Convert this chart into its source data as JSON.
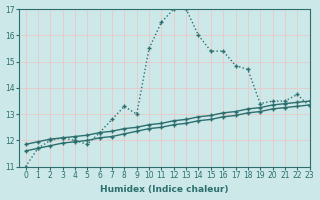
{
  "xlabel": "Humidex (Indice chaleur)",
  "bg_color": "#cce8e8",
  "line_color": "#2d6e6e",
  "grid_color": "#e8c8c8",
  "xlim": [
    -0.5,
    23
  ],
  "ylim": [
    11,
    17
  ],
  "x_ticks": [
    0,
    1,
    2,
    3,
    4,
    5,
    6,
    7,
    8,
    9,
    10,
    11,
    12,
    13,
    14,
    15,
    16,
    17,
    18,
    19,
    20,
    21,
    22,
    23
  ],
  "y_ticks": [
    11,
    12,
    13,
    14,
    15,
    16,
    17
  ],
  "main_x": [
    0,
    1,
    2,
    3,
    4,
    5,
    6,
    7,
    8,
    9,
    10,
    11,
    12,
    13,
    14,
    15,
    16,
    17,
    18,
    19,
    20,
    21,
    22,
    23
  ],
  "main_y": [
    11.0,
    11.7,
    12.0,
    12.1,
    12.0,
    11.85,
    12.3,
    12.8,
    13.3,
    13.0,
    15.5,
    16.5,
    17.0,
    17.0,
    16.0,
    15.4,
    15.4,
    14.85,
    14.7,
    13.4,
    13.5,
    13.5,
    13.75,
    13.3
  ],
  "ref1_x": [
    0,
    1,
    2,
    3,
    4,
    5,
    6,
    7,
    8,
    9,
    10,
    11,
    12,
    13,
    14,
    15,
    16,
    17,
    18,
    19,
    20,
    21,
    22,
    23
  ],
  "ref1_y": [
    11.85,
    11.95,
    12.05,
    12.1,
    12.15,
    12.2,
    12.3,
    12.35,
    12.45,
    12.5,
    12.6,
    12.65,
    12.75,
    12.8,
    12.9,
    12.95,
    13.05,
    13.1,
    13.2,
    13.25,
    13.35,
    13.4,
    13.45,
    13.5
  ],
  "ref2_x": [
    0,
    1,
    2,
    3,
    4,
    5,
    6,
    7,
    8,
    9,
    10,
    11,
    12,
    13,
    14,
    15,
    16,
    17,
    18,
    19,
    20,
    21,
    22,
    23
  ],
  "ref2_y": [
    11.6,
    11.7,
    11.8,
    11.9,
    11.95,
    12.0,
    12.1,
    12.15,
    12.25,
    12.35,
    12.45,
    12.5,
    12.6,
    12.65,
    12.75,
    12.8,
    12.9,
    12.95,
    13.05,
    13.1,
    13.2,
    13.25,
    13.3,
    13.35
  ],
  "marker_size": 3,
  "line_width": 1.0
}
